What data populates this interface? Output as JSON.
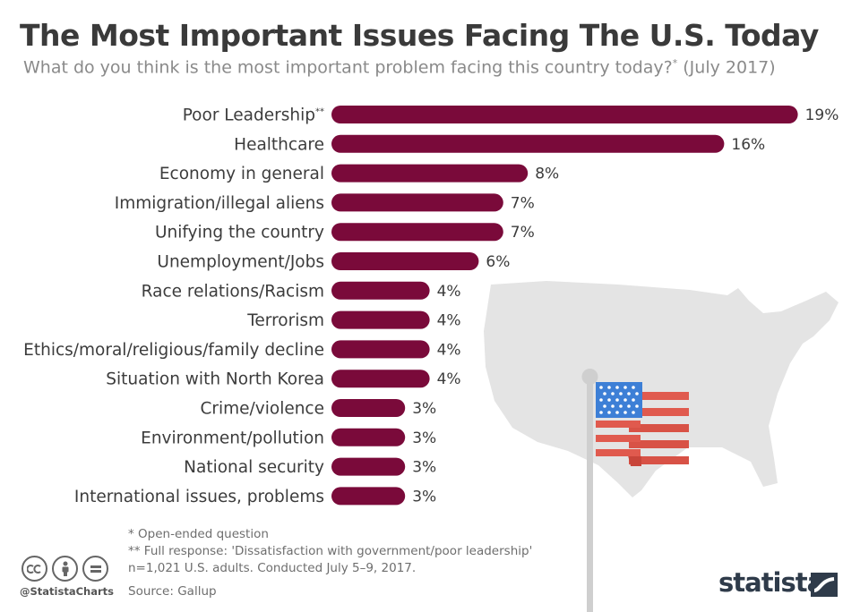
{
  "header": {
    "title": "The Most Important Issues Facing The U.S. Today",
    "subtitle": "What do you think is the most important problem facing this country today?",
    "subtitle_marker": "*",
    "subtitle_date": " (July 2017)"
  },
  "chart_data": {
    "type": "bar",
    "orientation": "horizontal",
    "categories": [
      "Poor Leadership",
      "Healthcare",
      "Economy in general",
      "Immigration/illegal aliens",
      "Unifying the country",
      "Unemployment/Jobs",
      "Race relations/Racism",
      "Terrorism",
      "Ethics/moral/religious/family decline",
      "Situation with North Korea",
      "Crime/violence",
      "Environment/pollution",
      "National security",
      "International issues, problems"
    ],
    "category_markers": [
      "**",
      "",
      "",
      "",
      "",
      "",
      "",
      "",
      "",
      "",
      "",
      "",
      "",
      ""
    ],
    "values": [
      19,
      16,
      8,
      7,
      7,
      6,
      4,
      4,
      4,
      4,
      3,
      3,
      3,
      3
    ],
    "value_labels": [
      "19%",
      "16%",
      "8%",
      "7%",
      "7%",
      "6%",
      "4%",
      "4%",
      "4%",
      "4%",
      "3%",
      "3%",
      "3%",
      "3%"
    ],
    "unit": "%",
    "bar_color": "#7a0a3a",
    "grid": false,
    "legend": "none"
  },
  "footnotes": [
    "*   Open-ended question",
    "** Full response: 'Dissatisfaction with government/poor leadership'",
    "n=1,021 U.S. adults. Conducted July 5–9, 2017."
  ],
  "source": "Source: Gallup",
  "footer": {
    "handle": "@StatistaCharts",
    "brand": "statista",
    "cc_icons": [
      "creative-commons-icon",
      "attribution-person-icon",
      "no-derivatives-icon"
    ]
  },
  "decor": {
    "map_color": "#e4e4e4",
    "flag_red": "#e05a4e",
    "flag_blue": "#3d7fd6",
    "pole_color": "#cfcfcf"
  }
}
